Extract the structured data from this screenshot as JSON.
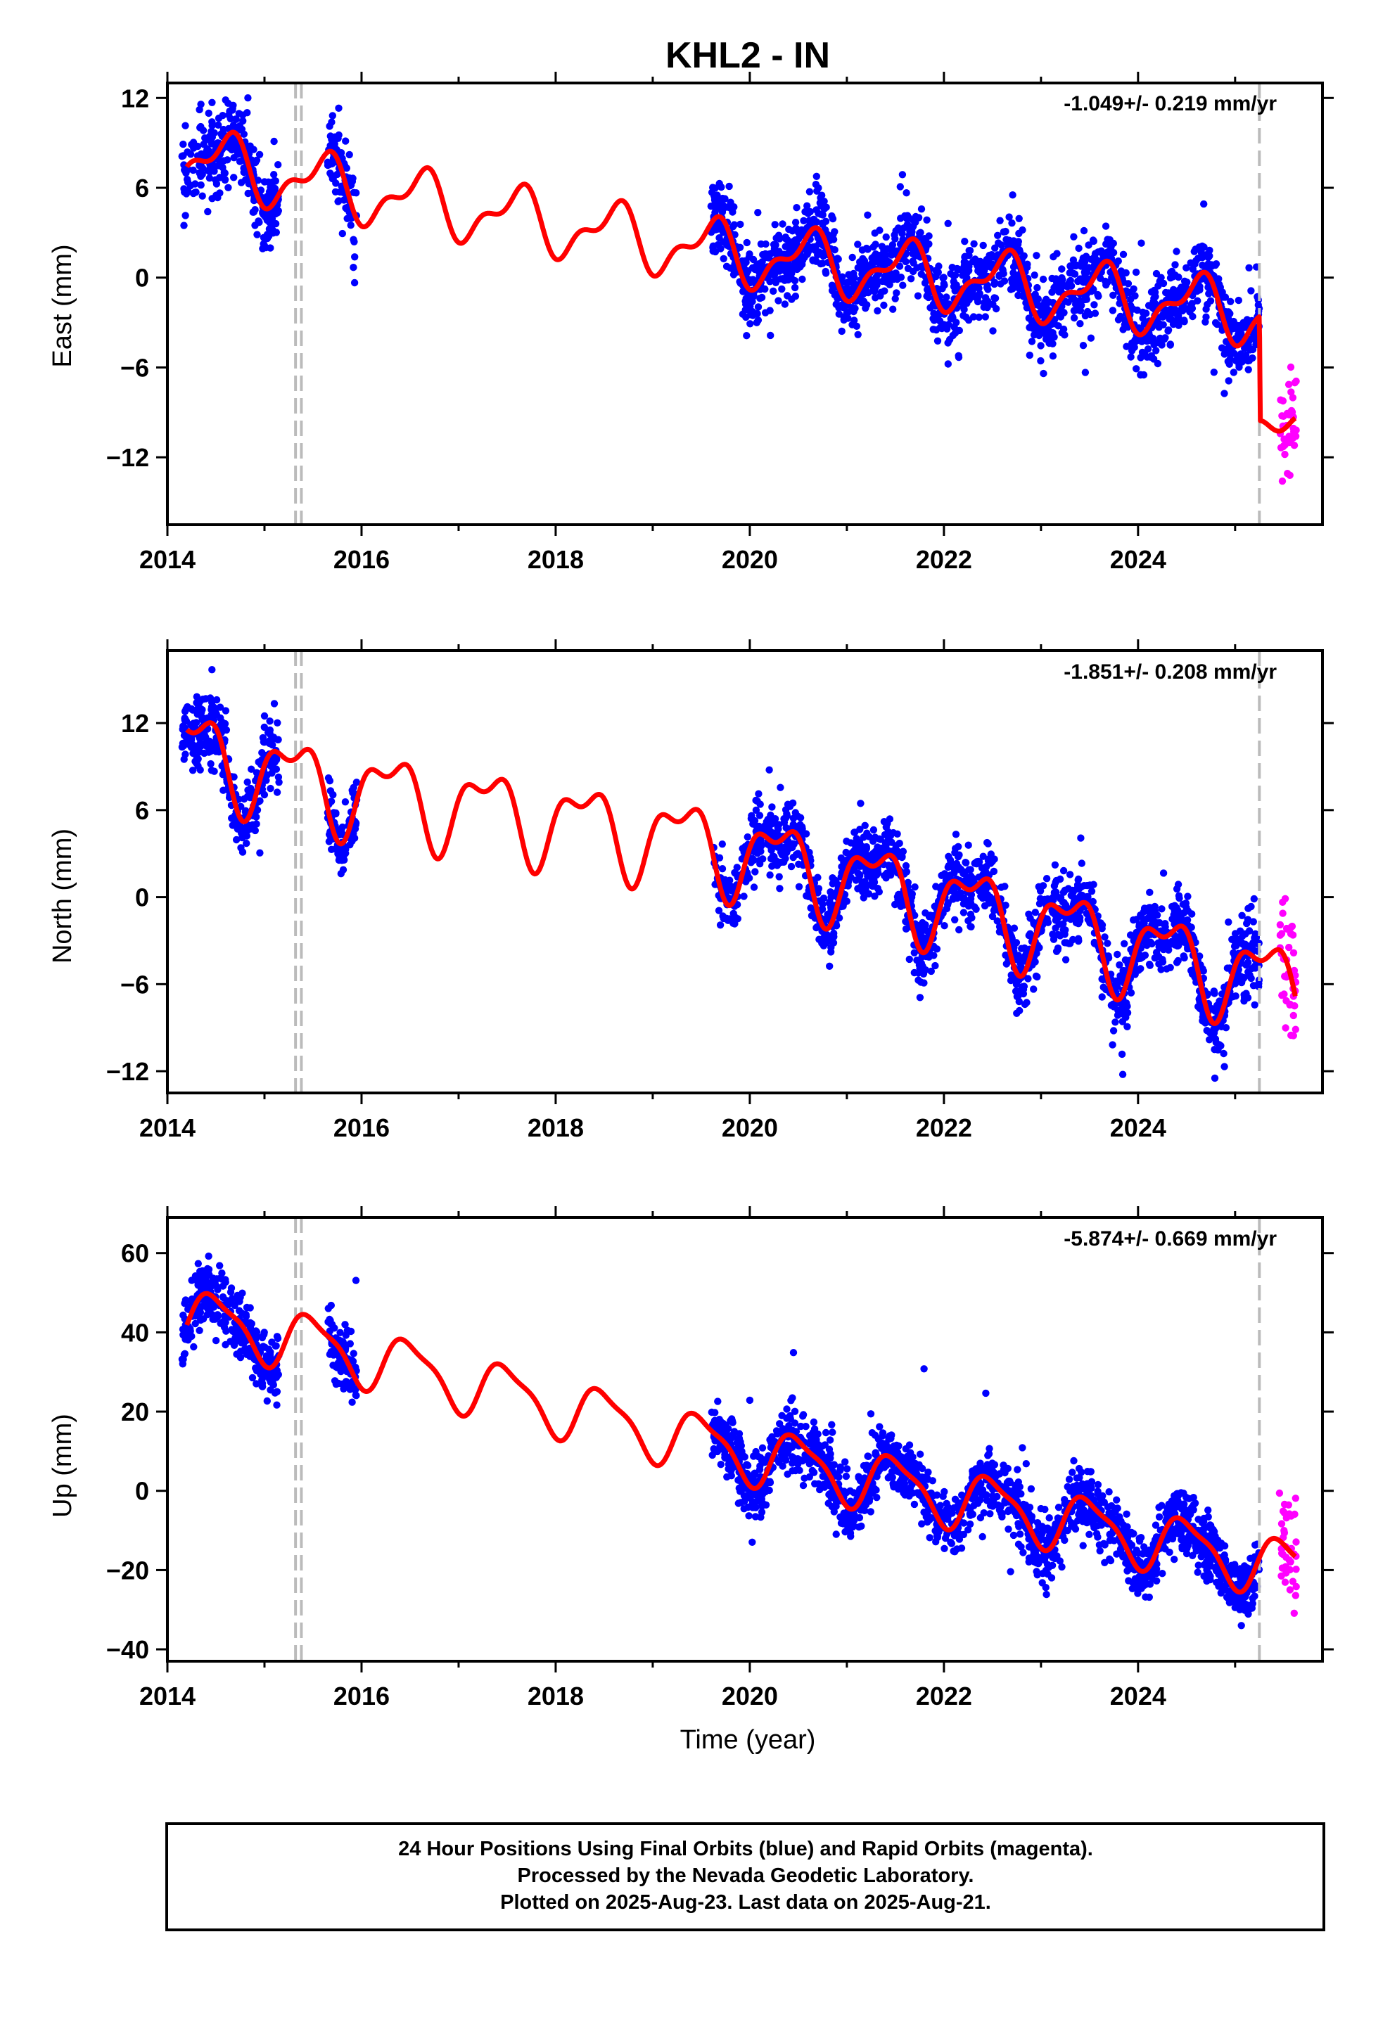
{
  "title": "KHL2 - IN",
  "xlabel": "Time (year)",
  "footer": {
    "line1": "24 Hour Positions Using Final Orbits (blue) and Rapid Orbits (magenta).",
    "line2": "Processed by the Nevada Geodetic Laboratory.",
    "line3": "Plotted on 2025-Aug-23. Last data on 2025-Aug-21."
  },
  "colors": {
    "final": "#0000ff",
    "rapid": "#ff00ff",
    "model": "#ff0000",
    "marker": "#bbbbbb"
  },
  "chart_data": [
    {
      "type": "scatter",
      "component": "east",
      "ylabel": "East (mm)",
      "rate_label": "-1.049+/- 0.219 mm/yr",
      "xlim": [
        2014.0,
        2025.9
      ],
      "ylim": [
        -16.5,
        13.0
      ],
      "xticks": [
        2014,
        2016,
        2018,
        2020,
        2022,
        2024
      ],
      "yticks": [
        -12,
        -6,
        0,
        6,
        12
      ],
      "offset_markers": [
        2015.32,
        2015.38,
        2025.25
      ],
      "rate": -1.049,
      "seasonal": {
        "a1": 1.8,
        "p1": 0.35,
        "a2": 0.9,
        "p2": 0.1
      },
      "model_anchors": [
        [
          2014.2,
          8.0
        ],
        [
          2015.5,
          6.3
        ],
        [
          2019.6,
          1.8
        ],
        [
          2025.25,
          -2.4
        ],
        [
          2025.26,
          -9.4
        ],
        [
          2025.62,
          -11.4
        ]
      ],
      "data_segments": [
        [
          2014.15,
          2015.15
        ],
        [
          2015.65,
          2015.95
        ],
        [
          2019.6,
          2025.25
        ]
      ],
      "rapid_segment": [
        2025.45,
        2025.63
      ],
      "noise": 1.3
    },
    {
      "type": "scatter",
      "component": "north",
      "ylabel": "North (mm)",
      "rate_label": "-1.851+/- 0.208 mm/yr",
      "xlim": [
        2014.0,
        2025.9
      ],
      "ylim": [
        -13.5,
        17.0
      ],
      "xticks": [
        2014,
        2016,
        2018,
        2020,
        2022,
        2024
      ],
      "yticks": [
        -12,
        -6,
        0,
        6,
        12
      ],
      "offset_markers": [
        2015.32,
        2015.38,
        2025.25
      ],
      "rate": -1.851,
      "seasonal": {
        "a1": 2.6,
        "p1": 0.05,
        "a2": 1.3,
        "p2": 0.4
      },
      "model_anchors": [
        [
          2014.2,
          10.2
        ],
        [
          2015.35,
          8.0
        ],
        [
          2019.6,
          3.6
        ],
        [
          2025.62,
          -6.2
        ]
      ],
      "data_segments": [
        [
          2014.15,
          2015.15
        ],
        [
          2015.65,
          2015.95
        ],
        [
          2019.6,
          2025.25
        ]
      ],
      "rapid_segment": [
        2025.45,
        2025.63
      ],
      "noise": 1.2
    },
    {
      "type": "scatter",
      "component": "up",
      "ylabel": "Up (mm)",
      "rate_label": "-5.874+/- 0.669 mm/yr",
      "xlim": [
        2014.0,
        2025.9
      ],
      "ylim": [
        -43.0,
        69.0
      ],
      "xticks": [
        2014,
        2016,
        2018,
        2020,
        2022,
        2024
      ],
      "yticks": [
        -40,
        -20,
        0,
        20,
        40,
        60
      ],
      "offset_markers": [
        2015.32,
        2015.38,
        2025.25
      ],
      "rate": -5.874,
      "seasonal": {
        "a1": 7.0,
        "p1": 0.25,
        "a2": 2.0,
        "p2": 0.2
      },
      "model_anchors": [
        [
          2014.2,
          44.0
        ],
        [
          2015.35,
          38.0
        ],
        [
          2019.6,
          11.5
        ],
        [
          2025.62,
          -20.0
        ]
      ],
      "data_segments": [
        [
          2014.15,
          2015.15
        ],
        [
          2015.65,
          2015.95
        ],
        [
          2019.6,
          2025.25
        ]
      ],
      "rapid_segment": [
        2025.45,
        2025.63
      ],
      "noise": 4.0
    }
  ]
}
